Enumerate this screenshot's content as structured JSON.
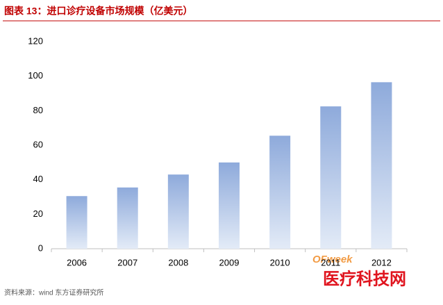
{
  "chart_data": {
    "type": "bar",
    "title": "图表 13：进口诊疗设备市场规模（亿美元）",
    "source": "资料来源：wind 东方证券研究所",
    "watermarks": [
      "OFweek",
      "医疗科技网"
    ],
    "categories": [
      "2006",
      "2007",
      "2008",
      "2009",
      "2010",
      "2011",
      "2012"
    ],
    "values": [
      30.5,
      35.5,
      43,
      50,
      65.5,
      82.5,
      96.5
    ],
    "color": "#8eaadb",
    "ylim": [
      0,
      120
    ],
    "yticks": [
      0,
      20,
      40,
      60,
      80,
      100,
      120
    ],
    "grid": false
  }
}
